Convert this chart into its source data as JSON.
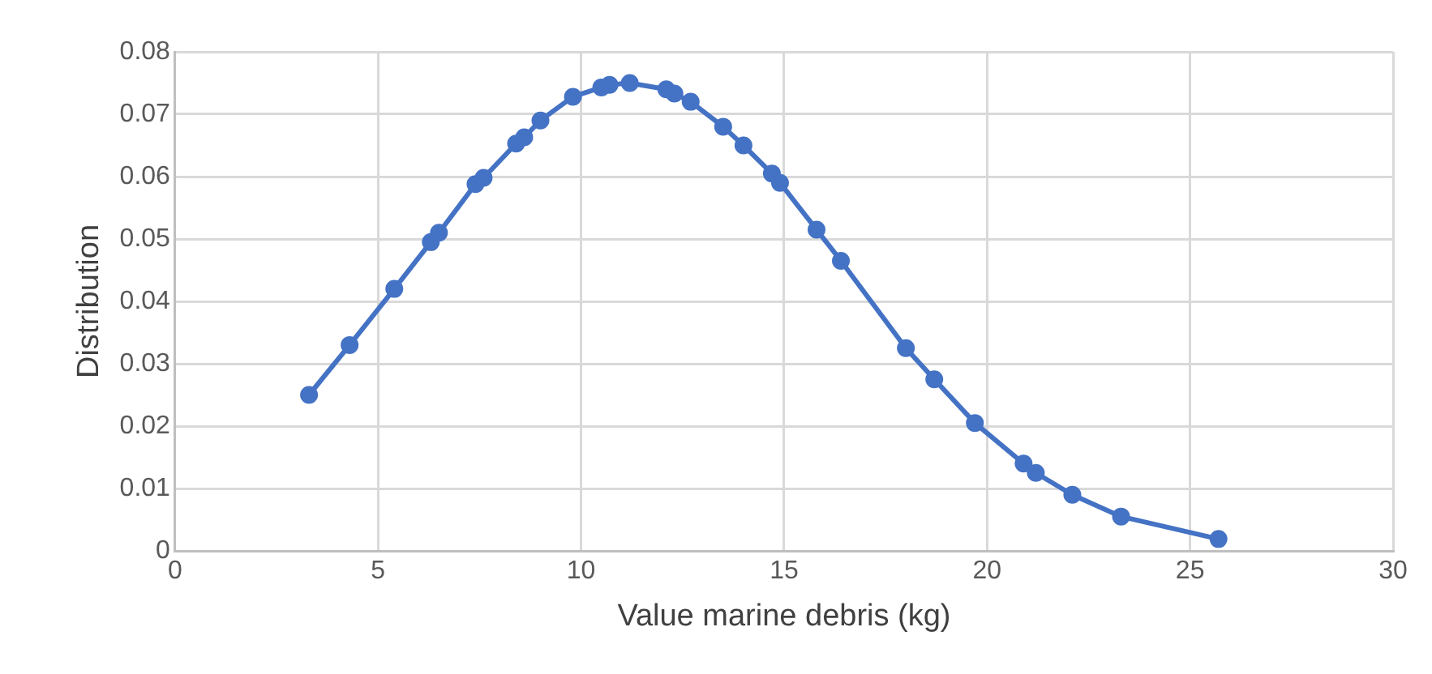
{
  "chart_data": {
    "type": "line",
    "xlabel": "Value marine debris (kg)",
    "ylabel": "Distribution",
    "x": [
      3.3,
      4.3,
      5.4,
      6.3,
      6.5,
      7.4,
      7.6,
      8.4,
      8.6,
      9.0,
      9.8,
      10.5,
      10.7,
      11.2,
      12.1,
      12.3,
      12.7,
      13.5,
      14.0,
      14.7,
      14.9,
      15.8,
      16.4,
      18.0,
      18.7,
      19.7,
      20.9,
      21.2,
      22.1,
      23.3,
      25.7
    ],
    "series": [
      {
        "color": "#4472c4",
        "values": [
          0.025,
          0.033,
          0.042,
          0.0495,
          0.051,
          0.0588,
          0.0598,
          0.0653,
          0.0663,
          0.069,
          0.0728,
          0.0743,
          0.0747,
          0.075,
          0.074,
          0.0733,
          0.072,
          0.068,
          0.065,
          0.0605,
          0.059,
          0.0515,
          0.0465,
          0.0325,
          0.0275,
          0.0205,
          0.014,
          0.0125,
          0.009,
          0.0055,
          0.0019
        ]
      }
    ],
    "xlim": [
      0,
      30
    ],
    "xticks": [
      0,
      5,
      10,
      15,
      20,
      25,
      30
    ],
    "ylim": [
      0,
      0.08
    ],
    "yticks": [
      0,
      0.01,
      0.02,
      0.03,
      0.04,
      0.05,
      0.06,
      0.07,
      0.08
    ],
    "grid": true,
    "legend": false,
    "marker": "circle",
    "line_style": "solid"
  }
}
